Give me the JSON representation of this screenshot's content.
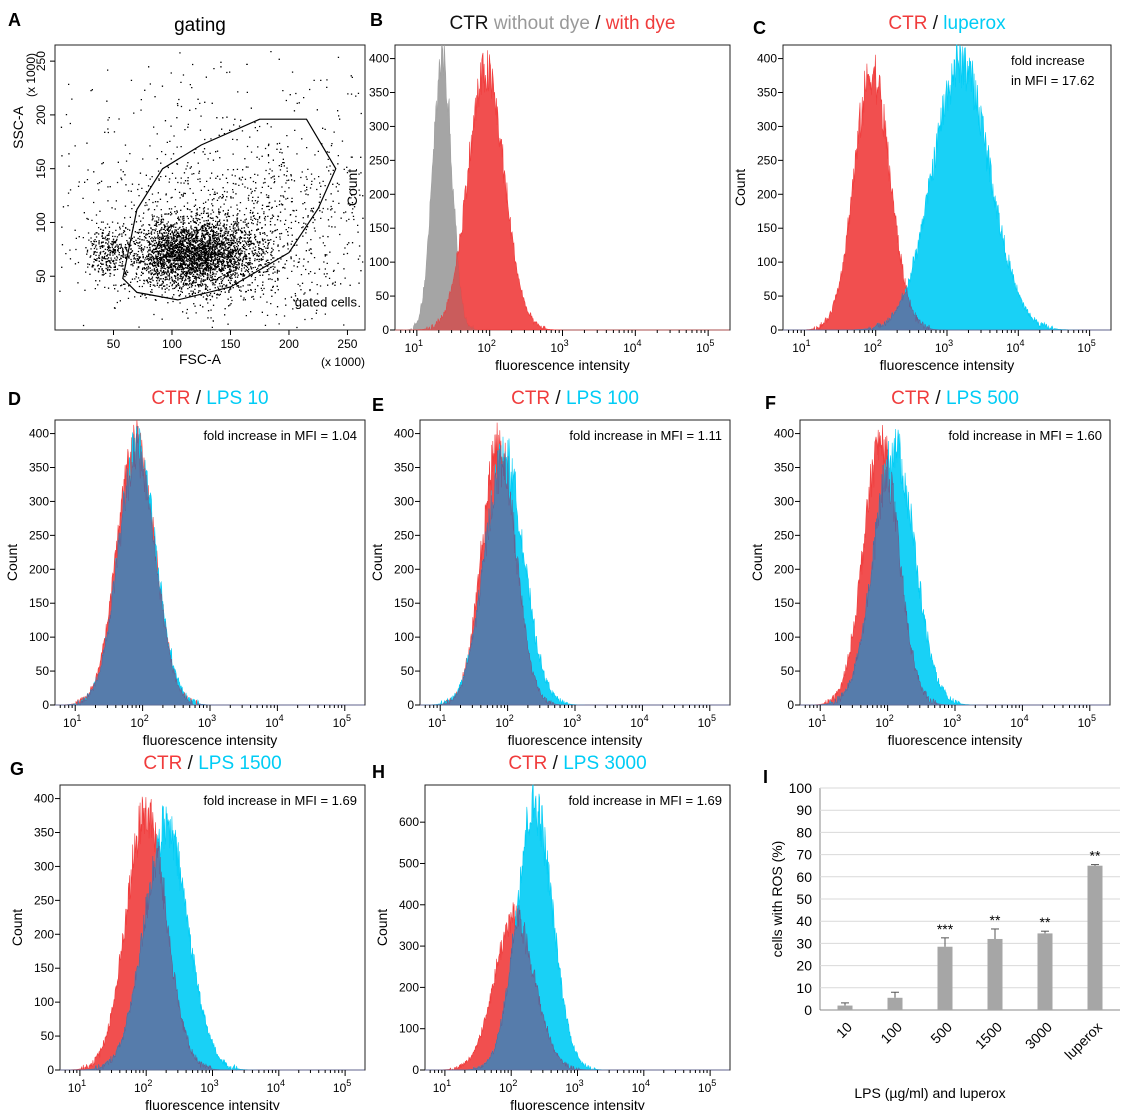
{
  "colors": {
    "ctr": "#f03c3c",
    "treat": "#00ccf5",
    "overlap": "#5a78a8",
    "nodye": "#a0a0a0",
    "bar": "#a6a6a6"
  },
  "decades": [
    "1",
    "2",
    "3",
    "4",
    "5"
  ],
  "shared": {
    "xlabel": "fluorescence intensity",
    "ylabel": "Count",
    "sep": " / ",
    "base": "10"
  },
  "chart_data": [
    {
      "letter": "A",
      "type": "scatter",
      "title": "gating",
      "xlabel": "FSC-A",
      "ylabel": "SSC-A",
      "unit": "(x 1000)",
      "xticks": [
        50,
        100,
        150,
        200,
        250
      ],
      "yticks": [
        50,
        100,
        150,
        200,
        250
      ],
      "xlim": [
        0,
        265
      ],
      "ylim": [
        0,
        265
      ],
      "gate_label": "gated cells",
      "gate": [
        [
          58,
          48
        ],
        [
          70,
          112
        ],
        [
          92,
          150
        ],
        [
          125,
          172
        ],
        [
          175,
          196
        ],
        [
          215,
          196
        ],
        [
          240,
          150
        ],
        [
          225,
          113
        ],
        [
          200,
          72
        ],
        [
          150,
          40
        ],
        [
          105,
          28
        ],
        [
          70,
          35
        ]
      ],
      "clusters": [
        {
          "cx": 118,
          "cy": 70,
          "sx": 28,
          "sy": 16,
          "n": 3200
        },
        {
          "cx": 45,
          "cy": 72,
          "sx": 9,
          "sy": 11,
          "n": 260
        },
        {
          "cx": 160,
          "cy": 95,
          "sx": 55,
          "sy": 40,
          "n": 900
        },
        {
          "cx": 130,
          "cy": 130,
          "sx": 110,
          "sy": 80,
          "n": 600
        }
      ]
    },
    {
      "letter": "B",
      "type": "histogram",
      "title_parts": [
        {
          "text": "CTR",
          "color": "#111111"
        },
        {
          "text": " without dye",
          "color": "#999999"
        },
        {
          "text": " / ",
          "color": "#111111"
        },
        {
          "text": "with dye",
          "color": "#f03c3c"
        }
      ],
      "yticks": [
        0,
        50,
        100,
        150,
        200,
        250,
        300,
        350,
        400
      ],
      "ymax": 420,
      "xlim_log10": [
        0.7,
        5.3
      ],
      "series": [
        {
          "name": "without dye",
          "role": "nodye",
          "mu": 1.35,
          "sigma": 0.13,
          "peak": 420
        },
        {
          "name": "with dye",
          "role": "ctr",
          "mu": 1.95,
          "sigma": 0.25,
          "peak": 395
        }
      ]
    },
    {
      "letter": "C",
      "type": "histogram",
      "title_parts": [
        {
          "text": "CTR",
          "color": "#f03c3c"
        },
        {
          "text": " / ",
          "color": "#111111"
        },
        {
          "text": "luperox",
          "color": "#00ccf5"
        }
      ],
      "annotation": [
        "fold increase",
        "in MFI = 17.62"
      ],
      "yticks": [
        0,
        50,
        100,
        150,
        200,
        250,
        300,
        350,
        400
      ],
      "ymax": 420,
      "xlim_log10": [
        0.7,
        5.3
      ],
      "series": [
        {
          "name": "CTR",
          "role": "ctr",
          "mu": 1.95,
          "sigma": 0.25,
          "peak": 395
        },
        {
          "name": "luperox",
          "role": "treat",
          "mu": 3.2,
          "sigma": 0.4,
          "peak": 410
        }
      ]
    },
    {
      "letter": "D",
      "type": "histogram",
      "title_parts": [
        {
          "text": "CTR",
          "color": "#f03c3c"
        },
        {
          "text": " / ",
          "color": "#111111"
        },
        {
          "text": "LPS 10",
          "color": "#00ccf5"
        }
      ],
      "annotation": [
        "fold increase in MFI = 1.04"
      ],
      "yticks": [
        0,
        50,
        100,
        150,
        200,
        250,
        300,
        350,
        400
      ],
      "ymax": 420,
      "xlim_log10": [
        0.7,
        5.3
      ],
      "series": [
        {
          "name": "CTR",
          "role": "ctr",
          "mu": 1.9,
          "sigma": 0.28,
          "peak": 400
        },
        {
          "name": "LPS 10",
          "role": "treat",
          "mu": 1.92,
          "sigma": 0.28,
          "peak": 390
        }
      ]
    },
    {
      "letter": "E",
      "type": "histogram",
      "title_parts": [
        {
          "text": "CTR",
          "color": "#f03c3c"
        },
        {
          "text": " / ",
          "color": "#111111"
        },
        {
          "text": "LPS 100",
          "color": "#00ccf5"
        }
      ],
      "annotation": [
        "fold increase in MFI = 1.11"
      ],
      "yticks": [
        0,
        50,
        100,
        150,
        200,
        250,
        300,
        350,
        400
      ],
      "ymax": 420,
      "xlim_log10": [
        0.7,
        5.3
      ],
      "series": [
        {
          "name": "CTR",
          "role": "ctr",
          "mu": 1.87,
          "sigma": 0.25,
          "peak": 400
        },
        {
          "name": "LPS 100",
          "role": "treat",
          "mu": 1.95,
          "sigma": 0.29,
          "peak": 380
        }
      ]
    },
    {
      "letter": "F",
      "type": "histogram",
      "title_parts": [
        {
          "text": "CTR",
          "color": "#f03c3c"
        },
        {
          "text": " / ",
          "color": "#111111"
        },
        {
          "text": "LPS 500",
          "color": "#00ccf5"
        }
      ],
      "annotation": [
        "fold increase in MFI = 1.60"
      ],
      "yticks": [
        0,
        50,
        100,
        150,
        200,
        250,
        300,
        350,
        400
      ],
      "ymax": 420,
      "xlim_log10": [
        0.7,
        5.3
      ],
      "series": [
        {
          "name": "CTR",
          "role": "ctr",
          "mu": 1.9,
          "sigma": 0.26,
          "peak": 400
        },
        {
          "name": "LPS 500",
          "role": "treat",
          "mu": 2.1,
          "sigma": 0.3,
          "peak": 395
        }
      ]
    },
    {
      "letter": "G",
      "type": "histogram",
      "title_parts": [
        {
          "text": "CTR",
          "color": "#f03c3c"
        },
        {
          "text": " / ",
          "color": "#111111"
        },
        {
          "text": "LPS 1500",
          "color": "#00ccf5"
        }
      ],
      "annotation": [
        "fold increase in MFI = 1.69"
      ],
      "yticks": [
        0,
        50,
        100,
        150,
        200,
        250,
        300,
        350,
        400
      ],
      "ymax": 420,
      "xlim_log10": [
        0.7,
        5.3
      ],
      "series": [
        {
          "name": "CTR",
          "role": "ctr",
          "mu": 2.0,
          "sigma": 0.3,
          "peak": 395
        },
        {
          "name": "LPS 1500",
          "role": "treat",
          "mu": 2.3,
          "sigma": 0.33,
          "peak": 370
        }
      ]
    },
    {
      "letter": "H",
      "type": "histogram",
      "title_parts": [
        {
          "text": "CTR",
          "color": "#f03c3c"
        },
        {
          "text": " / ",
          "color": "#111111"
        },
        {
          "text": "LPS 3000",
          "color": "#00ccf5"
        }
      ],
      "annotation": [
        "fold increase in MFI = 1.69"
      ],
      "yticks": [
        0,
        100,
        200,
        300,
        400,
        500,
        600
      ],
      "ymax": 690,
      "xlim_log10": [
        0.7,
        5.3
      ],
      "series": [
        {
          "name": "CTR",
          "role": "ctr",
          "mu": 2.05,
          "sigma": 0.3,
          "peak": 385
        },
        {
          "name": "LPS 3000",
          "role": "treat",
          "mu": 2.35,
          "sigma": 0.27,
          "peak": 670
        }
      ]
    },
    {
      "letter": "I",
      "type": "bar",
      "ylabel": "cells with ROS (%)",
      "xlabel": "LPS (µg/ml) and luperox",
      "categories": [
        "10",
        "100",
        "500",
        "1500",
        "3000",
        "luperox"
      ],
      "values": [
        2,
        5.5,
        28.5,
        32,
        34.5,
        65
      ],
      "errors": [
        1.2,
        2.5,
        4,
        4.5,
        1,
        0.5
      ],
      "significance": [
        "",
        "",
        "***",
        "**",
        "**",
        "**"
      ],
      "yticks": [
        0,
        10,
        20,
        30,
        40,
        50,
        60,
        70,
        80,
        90,
        100
      ],
      "ylim": [
        0,
        100
      ]
    }
  ]
}
